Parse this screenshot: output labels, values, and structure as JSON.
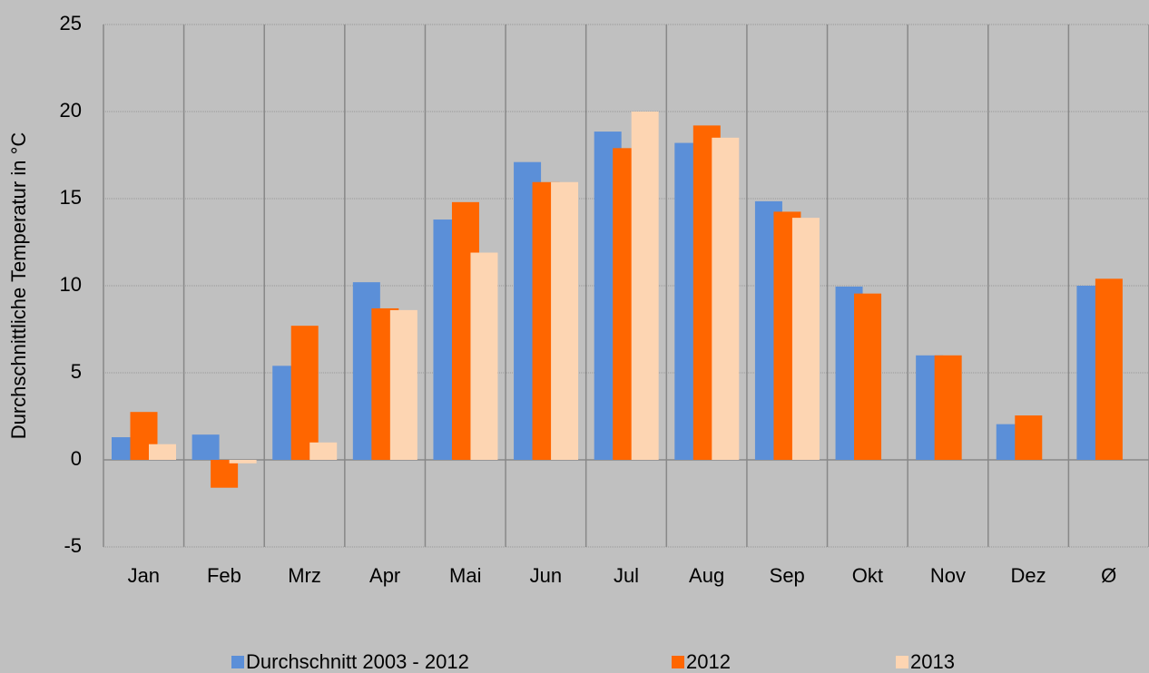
{
  "chart_data": {
    "type": "bar",
    "y_axis_label": "Durchschnittliche Temperatur in °C",
    "categories": [
      "Jan",
      "Feb",
      "Mrz",
      "Apr",
      "Mai",
      "Jun",
      "Jul",
      "Aug",
      "Sep",
      "Okt",
      "Nov",
      "Dez",
      "Ø"
    ],
    "series": [
      {
        "name": "Durchschnitt 2003 - 2012",
        "color": "#5b8fd8",
        "values": [
          1.3,
          1.45,
          5.4,
          10.2,
          13.8,
          17.1,
          18.85,
          18.2,
          14.85,
          9.95,
          6.0,
          2.05,
          10.0
        ]
      },
      {
        "name": "2012",
        "color": "#ff6600",
        "values": [
          2.75,
          -1.6,
          7.7,
          8.7,
          14.8,
          15.95,
          17.9,
          19.2,
          14.25,
          9.55,
          6.0,
          2.55,
          10.4
        ]
      },
      {
        "name": "2013",
        "color": "#fdd5b2",
        "values": [
          0.9,
          -0.2,
          1.0,
          8.6,
          11.9,
          15.95,
          20.0,
          18.5,
          13.9,
          null,
          null,
          null,
          null
        ]
      }
    ],
    "ylim": [
      -5,
      25
    ],
    "yticks": [
      -5,
      0,
      5,
      10,
      15,
      20,
      25
    ],
    "grid": true,
    "legend": "bottom"
  }
}
